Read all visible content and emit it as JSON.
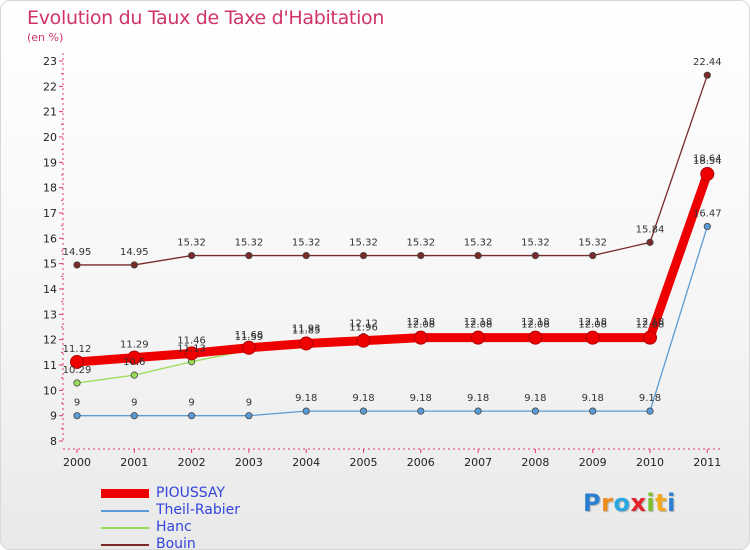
{
  "title": "Evolution du Taux de Taxe d'Habitation",
  "subtitle": "(en %)",
  "logo": {
    "text": "Proxiti",
    "letters": [
      {
        "ch": "P",
        "color": "#2a7fd0"
      },
      {
        "ch": "r",
        "color": "#f08a1c"
      },
      {
        "ch": "o",
        "color": "#2aa7e0"
      },
      {
        "ch": "x",
        "color": "#e2242a"
      },
      {
        "ch": "i",
        "color": "#7bbf2a"
      },
      {
        "ch": "t",
        "color": "#f2a91c"
      },
      {
        "ch": "i",
        "color": "#2a7fd0"
      }
    ]
  },
  "chart_data": {
    "type": "line",
    "x": [
      "2000",
      "2001",
      "2002",
      "2003",
      "2004",
      "2005",
      "2006",
      "2007",
      "2008",
      "2009",
      "2010",
      "2011"
    ],
    "ylim": [
      8,
      23
    ],
    "yticks": [
      8,
      9,
      10,
      11,
      12,
      13,
      14,
      15,
      16,
      17,
      18,
      19,
      20,
      21,
      22,
      23
    ],
    "grid": false,
    "legend_position": "bottom-left",
    "series": [
      {
        "name": "PIOUSSAY",
        "color": "#ee0000",
        "bold": true,
        "values": [
          11.12,
          11.29,
          11.46,
          11.68,
          11.85,
          11.96,
          12.08,
          12.08,
          12.08,
          12.08,
          12.08,
          18.54
        ],
        "labels": [
          "11.12",
          "11.29",
          "11.46",
          "11.68",
          "11.85",
          "11.96",
          "12.08",
          "12.08",
          "12.08",
          "12.08",
          "12.08",
          "18.54"
        ]
      },
      {
        "name": "Theil-Rabier",
        "color": "#5b9bd5",
        "bold": false,
        "values": [
          9,
          9,
          9,
          9,
          9.18,
          9.18,
          9.18,
          9.18,
          9.18,
          9.18,
          9.18,
          16.47
        ],
        "labels": [
          "9",
          "9",
          "9",
          "9",
          "9.18",
          "9.18",
          "9.18",
          "9.18",
          "9.18",
          "9.18",
          "9.18",
          "16.47"
        ]
      },
      {
        "name": "Hanc",
        "color": "#99dd55",
        "bold": false,
        "values": [
          10.29,
          10.6,
          11.13,
          11.59,
          11.93,
          12.12,
          12.18,
          12.18,
          12.18,
          12.18,
          12.18,
          18.64
        ],
        "labels": [
          "10.29",
          "10.6",
          "11.13",
          "11.59",
          "11.93",
          "12.12",
          "12.18",
          "12.18",
          "12.18",
          "12.18",
          "12.18",
          "18.64"
        ]
      },
      {
        "name": "Bouin",
        "color": "#7a2a2a",
        "bold": false,
        "values": [
          14.95,
          14.95,
          15.32,
          15.32,
          15.32,
          15.32,
          15.32,
          15.32,
          15.32,
          15.32,
          15.84,
          22.44
        ],
        "labels": [
          "14.95",
          "14.95",
          "15.32",
          "15.32",
          "15.32",
          "15.32",
          "15.32",
          "15.32",
          "15.32",
          "15.32",
          "15.84",
          "22.44"
        ]
      }
    ]
  }
}
